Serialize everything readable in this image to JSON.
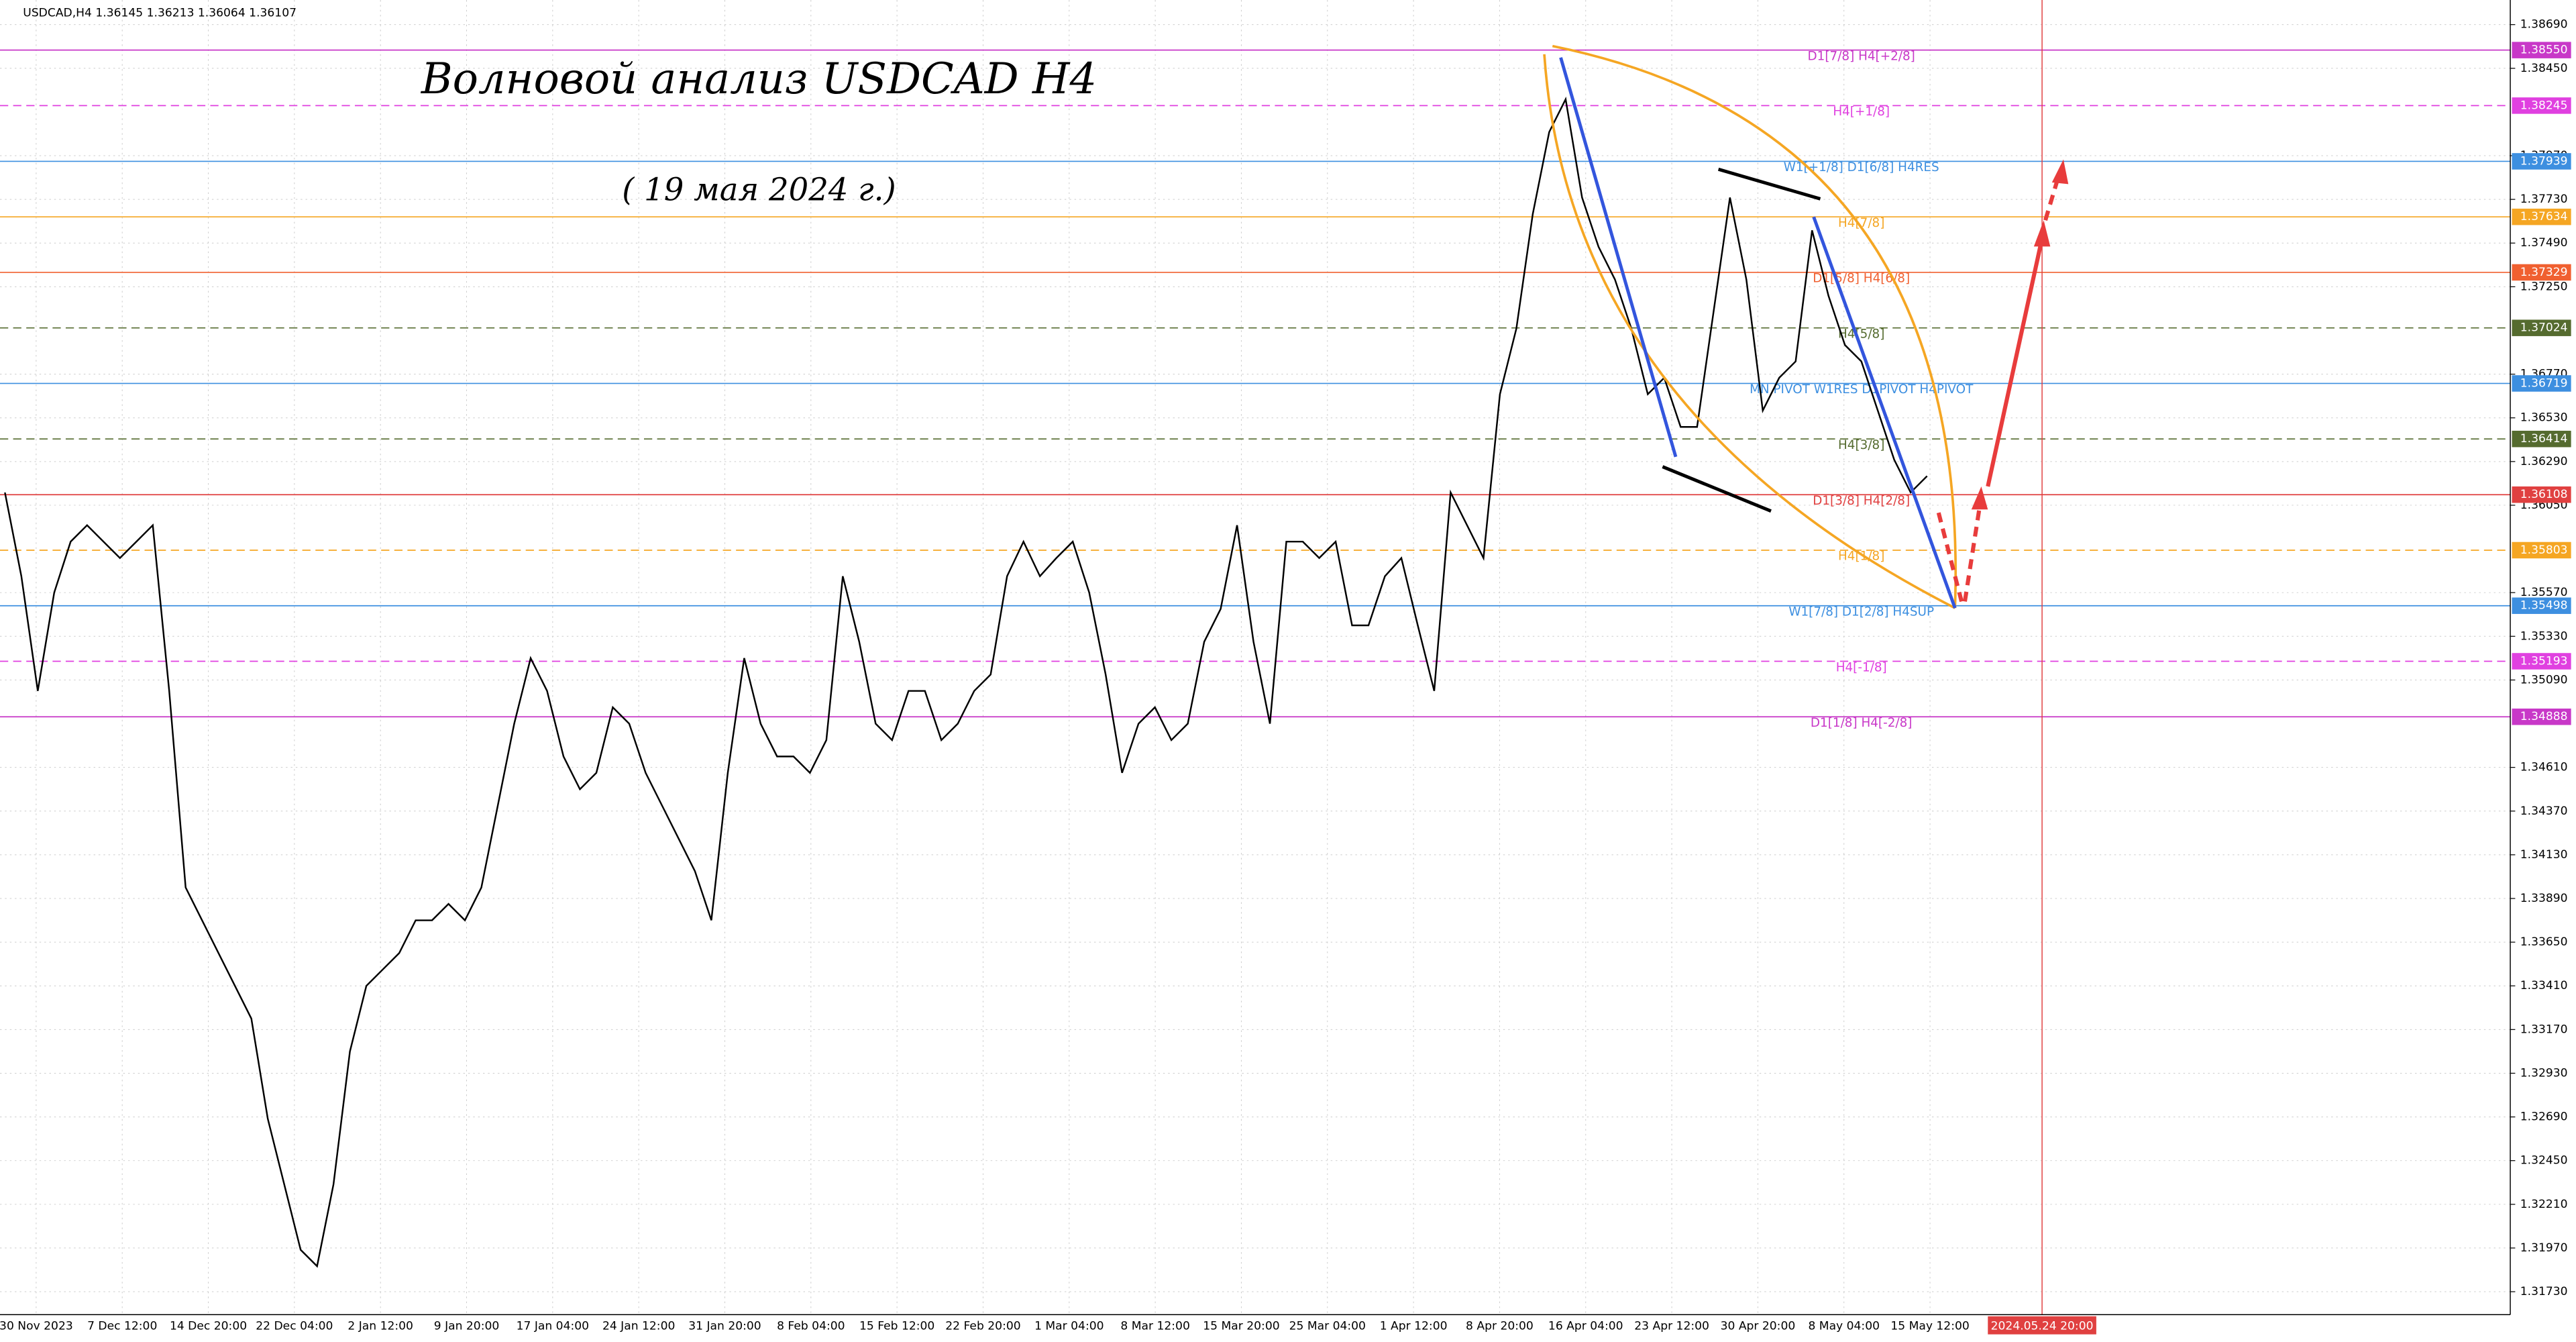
{
  "chart_data": {
    "type": "line",
    "header": "USDCAD,H4  1.36145 1.36213 1.36064 1.36107",
    "title": "Волновой анализ USDCAD H4",
    "subtitle": "( 19 мая 2024 г.)",
    "x_labels": [
      "30 Nov 2023",
      "7 Dec 12:00",
      "14 Dec 20:00",
      "22 Dec 04:00",
      "2 Jan 12:00",
      "9 Jan 20:00",
      "17 Jan 04:00",
      "24 Jan 12:00",
      "31 Jan 20:00",
      "8 Feb 04:00",
      "15 Feb 12:00",
      "22 Feb 20:00",
      "1 Mar 04:00",
      "8 Mar 12:00",
      "15 Mar 20:00",
      "25 Mar 04:00",
      "1 Apr 12:00",
      "8 Apr 20:00",
      "16 Apr 04:00",
      "23 Apr 12:00",
      "30 Apr 20:00",
      "8 May 04:00",
      "15 May 12:00"
    ],
    "future_label": "2024.05.24 20:00",
    "series": [
      {
        "name": "USDCAD",
        "color": "#000000",
        "values": [
          1.3612,
          1.3566,
          1.3503,
          1.3557,
          1.3585,
          1.3594,
          1.3585,
          1.3576,
          1.3585,
          1.3594,
          1.3503,
          1.3395,
          1.3377,
          1.3359,
          1.3341,
          1.3323,
          1.3268,
          1.3232,
          1.3196,
          1.3187,
          1.3232,
          1.3305,
          1.3341,
          1.335,
          1.3359,
          1.3377,
          1.3377,
          1.3386,
          1.3377,
          1.3395,
          1.344,
          1.3485,
          1.3521,
          1.3503,
          1.3467,
          1.3449,
          1.3458,
          1.3494,
          1.3485,
          1.3458,
          1.344,
          1.3422,
          1.3404,
          1.3377,
          1.3458,
          1.3521,
          1.3485,
          1.3467,
          1.3467,
          1.3458,
          1.3476,
          1.3566,
          1.353,
          1.3485,
          1.3476,
          1.3503,
          1.3503,
          1.3476,
          1.3485,
          1.3503,
          1.3512,
          1.3566,
          1.3585,
          1.3566,
          1.3576,
          1.3585,
          1.3557,
          1.3512,
          1.3458,
          1.3485,
          1.3494,
          1.3476,
          1.3485,
          1.353,
          1.3548,
          1.3594,
          1.353,
          1.3485,
          1.3585,
          1.3585,
          1.3576,
          1.3585,
          1.3539,
          1.3539,
          1.3566,
          1.3576,
          1.3539,
          1.3503,
          1.3612,
          1.3594,
          1.3576,
          1.3666,
          1.3702,
          1.3765,
          1.381,
          1.3828,
          1.3774,
          1.3747,
          1.3729,
          1.3702,
          1.3666,
          1.3675,
          1.3648,
          1.3648,
          1.3711,
          1.3774,
          1.3729,
          1.3657,
          1.3675,
          1.3684,
          1.3756,
          1.372,
          1.3693,
          1.3684,
          1.3657,
          1.363,
          1.3612,
          1.3621
        ]
      }
    ],
    "ylim": [
      1.31604,
      1.38825
    ],
    "yticks": [
      {
        "value": 1.3173,
        "label": "1.31730"
      },
      {
        "value": 1.3197,
        "label": "1.31970"
      },
      {
        "value": 1.3221,
        "label": "1.32210"
      },
      {
        "value": 1.3245,
        "label": "1.32450"
      },
      {
        "value": 1.3269,
        "label": "1.32690"
      },
      {
        "value": 1.3293,
        "label": "1.32930"
      },
      {
        "value": 1.3317,
        "label": "1.33170"
      },
      {
        "value": 1.3341,
        "label": "1.33410"
      },
      {
        "value": 1.3365,
        "label": "1.33650"
      },
      {
        "value": 1.3389,
        "label": "1.33890"
      },
      {
        "value": 1.3413,
        "label": "1.34130"
      },
      {
        "value": 1.3437,
        "label": "1.34370"
      },
      {
        "value": 1.3461,
        "label": "1.34610"
      },
      {
        "value": 1.3509,
        "label": "1.35090"
      },
      {
        "value": 1.3533,
        "label": "1.35330"
      },
      {
        "value": 1.3557,
        "label": "1.35570"
      },
      {
        "value": 1.3605,
        "label": "1.36050"
      },
      {
        "value": 1.3629,
        "label": "1.36290"
      },
      {
        "value": 1.3653,
        "label": "1.36530"
      },
      {
        "value": 1.3677,
        "label": "1.36770"
      },
      {
        "value": 1.3725,
        "label": "1.37250"
      },
      {
        "value": 1.3749,
        "label": "1.37490"
      },
      {
        "value": 1.3773,
        "label": "1.37730"
      },
      {
        "value": 1.3797,
        "label": "1.37970"
      },
      {
        "value": 1.3845,
        "label": "1.38450"
      },
      {
        "value": 1.3869,
        "label": "1.38690"
      }
    ],
    "grid": true,
    "levels": [
      {
        "value": 1.3855,
        "label": "1.38550",
        "text": "D1[7/8] H4[+2/8]",
        "color": "#c838c8",
        "dashed": false
      },
      {
        "value": 1.38245,
        "label": "1.38245",
        "text": "H4[+1/8]",
        "color": "#e040e0",
        "dashed": true
      },
      {
        "value": 1.37939,
        "label": "1.37939",
        "text": "W1[+1/8] D1[6/8] H4RES",
        "color": "#3d8fe0",
        "dashed": false
      },
      {
        "value": 1.37634,
        "label": "1.37634",
        "text": "H4[7/8]",
        "color": "#f5a623",
        "dashed": false
      },
      {
        "value": 1.37329,
        "label": "1.37329",
        "text": "D1[5/8] H4[6/8]",
        "color": "#f06030",
        "dashed": false
      },
      {
        "value": 1.37024,
        "label": "1.37024",
        "text": "H4[5/8]",
        "color": "#556b2f",
        "dashed": true
      },
      {
        "value": 1.36719,
        "label": "1.36719",
        "text": "MN PIVOT W1RES D1PIVOT H4PIVOT",
        "color": "#3d8fe0",
        "dashed": false
      },
      {
        "value": 1.36414,
        "label": "1.36414",
        "text": "H4[3/8]",
        "color": "#556b2f",
        "dashed": true
      },
      {
        "value": 1.36108,
        "label": "1.36108",
        "text": "D1[3/8] H4[2/8]",
        "color": "#e04040",
        "dashed": false
      },
      {
        "value": 1.35803,
        "label": "1.35803",
        "text": "H4[1/8]",
        "color": "#f5a623",
        "dashed": true
      },
      {
        "value": 1.35498,
        "label": "1.35498",
        "text": "W1[7/8] D1[2/8] H4SUP",
        "color": "#3d8fe0",
        "dashed": false
      },
      {
        "value": 1.35193,
        "label": "1.35193",
        "text": "H4[-1/8]",
        "color": "#e040e0",
        "dashed": true
      },
      {
        "value": 1.34888,
        "label": "1.34888",
        "text": "D1[1/8] H4[-2/8]",
        "color": "#c838c8",
        "dashed": false
      }
    ]
  }
}
